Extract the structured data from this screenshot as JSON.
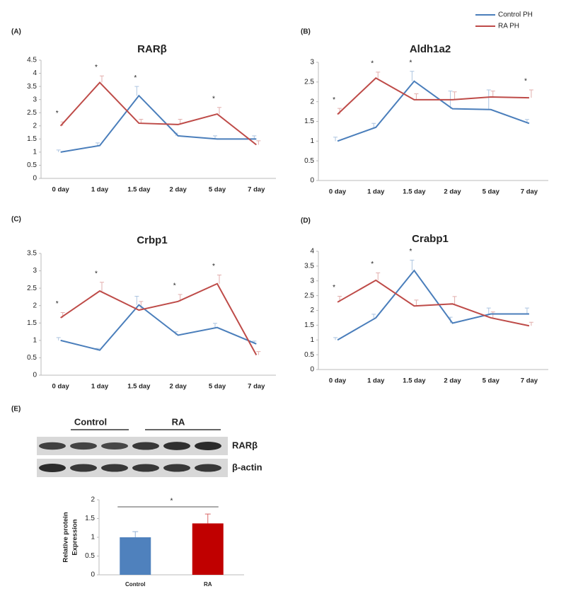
{
  "chart_data": [
    {
      "type": "line",
      "label": "(A)",
      "title": "RARβ",
      "categories": [
        "0 day",
        "1 day",
        "1.5 day",
        "2 day",
        "5 day",
        "7 day"
      ],
      "series": [
        {
          "name": "Control PH",
          "color": "#4a7ebb",
          "values": [
            1.0,
            1.25,
            3.15,
            1.62,
            1.5,
            1.5
          ],
          "errors": [
            0.08,
            0.1,
            0.35,
            0.1,
            0.12,
            0.12
          ]
        },
        {
          "name": "RA PH",
          "color": "#be4b48",
          "values": [
            2.0,
            3.65,
            2.1,
            2.05,
            2.45,
            1.28
          ],
          "errors": [
            0.15,
            0.25,
            0.15,
            0.2,
            0.25,
            0.15
          ]
        }
      ],
      "significance": [
        "*",
        "*",
        "*",
        null,
        "*",
        null
      ],
      "ylim": [
        0,
        4.5
      ],
      "yticks": [
        0,
        0.5,
        1,
        1.5,
        2,
        2.5,
        3,
        3.5,
        4,
        4.5
      ]
    },
    {
      "type": "line",
      "label": "(B)",
      "title": "Aldh1a2",
      "categories": [
        "0 day",
        "1 day",
        "1.5 day",
        "2 day",
        "5 day",
        "7 day"
      ],
      "series": [
        {
          "color": "#4a7ebb",
          "values": [
            1.0,
            1.35,
            2.52,
            1.82,
            1.8,
            1.45
          ],
          "errors": [
            0.1,
            0.1,
            0.25,
            0.45,
            0.5,
            0.1
          ]
        },
        {
          "color": "#be4b48",
          "values": [
            1.68,
            2.6,
            2.05,
            2.05,
            2.12,
            2.1
          ],
          "errors": [
            0.15,
            0.15,
            0.15,
            0.2,
            0.15,
            0.2
          ]
        }
      ],
      "significance": [
        "*",
        "*",
        "*",
        null,
        null,
        "*"
      ],
      "ylim": [
        0,
        3
      ],
      "yticks": [
        0,
        0.5,
        1,
        1.5,
        2,
        2.5,
        3
      ]
    },
    {
      "type": "line",
      "label": "(C)",
      "title": "Crbp1",
      "categories": [
        "0 day",
        "1 day",
        "1.5 day",
        "2 day",
        "5 day",
        "7 day"
      ],
      "series": [
        {
          "color": "#4a7ebb",
          "values": [
            1.0,
            0.72,
            2.02,
            1.15,
            1.37,
            0.9
          ],
          "errors": [
            0.08,
            0.05,
            0.25,
            0.1,
            0.12,
            0.08
          ]
        },
        {
          "color": "#be4b48",
          "values": [
            1.65,
            2.42,
            1.87,
            2.12,
            2.63,
            0.58
          ],
          "errors": [
            0.15,
            0.25,
            0.25,
            0.2,
            0.25,
            0.1
          ]
        }
      ],
      "significance": [
        "*",
        "*",
        null,
        "*",
        "*",
        null
      ],
      "ylim": [
        0,
        3.5
      ],
      "yticks": [
        0,
        0.5,
        1,
        1.5,
        2,
        2.5,
        3,
        3.5
      ]
    },
    {
      "type": "line",
      "label": "(D)",
      "title": "Crabp1",
      "categories": [
        "0 day",
        "1 day",
        "1.5 day",
        "2 day",
        "5 day",
        "7 day"
      ],
      "series": [
        {
          "color": "#4a7ebb",
          "values": [
            1.0,
            1.75,
            3.35,
            1.57,
            1.88,
            1.88
          ],
          "errors": [
            0.08,
            0.12,
            0.35,
            0.2,
            0.2,
            0.2
          ]
        },
        {
          "color": "#be4b48",
          "values": [
            2.28,
            3.02,
            2.15,
            2.22,
            1.75,
            1.48
          ],
          "errors": [
            0.2,
            0.25,
            0.2,
            0.25,
            0.2,
            0.12
          ]
        }
      ],
      "significance": [
        "*",
        "*",
        "*",
        null,
        null,
        null
      ],
      "ylim": [
        0,
        4
      ],
      "yticks": [
        0,
        0.5,
        1,
        1.5,
        2,
        2.5,
        3,
        3.5,
        4
      ]
    },
    {
      "type": "bar",
      "label": "(E)",
      "blot": {
        "groups": [
          "Control",
          "RA"
        ],
        "rows": [
          "RARβ",
          "β-actin"
        ]
      },
      "categories": [
        "Control",
        "RA"
      ],
      "values": [
        1.0,
        1.37
      ],
      "errors": [
        0.15,
        0.25
      ],
      "colors": [
        "#4f81bd",
        "#c00000"
      ],
      "ylabel": [
        "Relative protein",
        "Expression"
      ],
      "significance": "*",
      "ylim": [
        0,
        2
      ],
      "yticks": [
        0,
        0.5,
        1,
        1.5,
        2
      ]
    }
  ]
}
